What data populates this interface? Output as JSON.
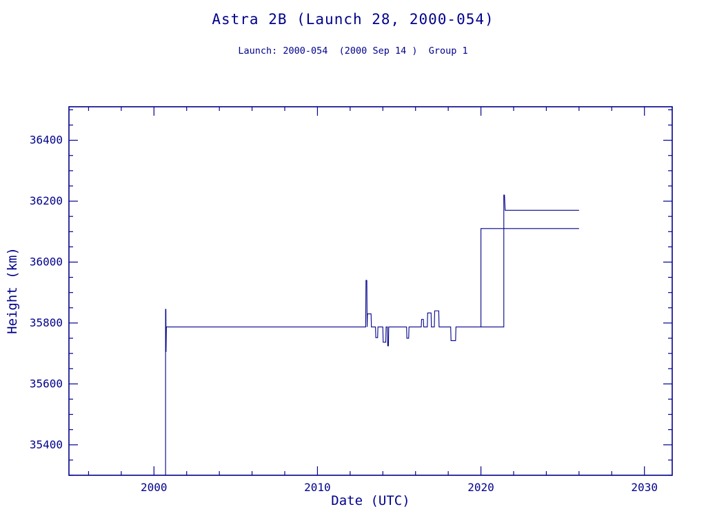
{
  "page": {
    "title": "Astra 2B (Launch 28, 2000-054)",
    "subtitle": "Launch: 2000-054  (2000 Sep 14 )  Group 1"
  },
  "chart_data": {
    "type": "line",
    "title": "Astra 2B (Launch 28, 2000-054)",
    "subtitle": "Launch: 2000-054  (2000 Sep 14 )  Group 1",
    "xlabel": "Date (UTC)",
    "ylabel": "Height (km)",
    "xlim": [
      1994.8,
      2031.7
    ],
    "ylim": [
      35300,
      36510
    ],
    "x_major_ticks": [
      2000,
      2010,
      2020,
      2030
    ],
    "x_minor_step": 2,
    "y_major_ticks": [
      35400,
      35600,
      35800,
      36000,
      36200,
      36400
    ],
    "y_minor_step": 50,
    "line_color": "#00008B",
    "axis_color": "#00008B",
    "legend": "none",
    "grid": false,
    "series": [
      {
        "name": "height-main",
        "points": [
          [
            2000.71,
            35300
          ],
          [
            2000.71,
            35845
          ],
          [
            2000.73,
            35845
          ],
          [
            2000.74,
            35705
          ],
          [
            2000.76,
            35787
          ],
          [
            2012.95,
            35787
          ],
          [
            2012.97,
            35940
          ],
          [
            2013.02,
            35940
          ],
          [
            2013.04,
            35787
          ],
          [
            2013.06,
            35830
          ],
          [
            2013.28,
            35830
          ],
          [
            2013.3,
            35787
          ],
          [
            2013.55,
            35787
          ],
          [
            2013.57,
            35752
          ],
          [
            2013.68,
            35752
          ],
          [
            2013.7,
            35787
          ],
          [
            2014.0,
            35787
          ],
          [
            2014.02,
            35737
          ],
          [
            2014.18,
            35737
          ],
          [
            2014.2,
            35787
          ],
          [
            2014.28,
            35787
          ],
          [
            2014.3,
            35725
          ],
          [
            2014.34,
            35725
          ],
          [
            2014.36,
            35787
          ],
          [
            2015.45,
            35787
          ],
          [
            2015.47,
            35750
          ],
          [
            2015.58,
            35750
          ],
          [
            2015.6,
            35787
          ],
          [
            2016.35,
            35787
          ],
          [
            2016.37,
            35812
          ],
          [
            2016.48,
            35812
          ],
          [
            2016.5,
            35787
          ],
          [
            2016.72,
            35787
          ],
          [
            2016.74,
            35833
          ],
          [
            2016.95,
            35833
          ],
          [
            2016.97,
            35787
          ],
          [
            2017.15,
            35787
          ],
          [
            2017.17,
            35840
          ],
          [
            2017.42,
            35840
          ],
          [
            2017.44,
            35787
          ],
          [
            2018.15,
            35787
          ],
          [
            2018.17,
            35742
          ],
          [
            2018.45,
            35742
          ],
          [
            2018.47,
            35787
          ],
          [
            2021.4,
            35787
          ],
          [
            2021.4,
            36220
          ],
          [
            2021.44,
            36220
          ],
          [
            2021.48,
            36170
          ],
          [
            2026.0,
            36170
          ]
        ]
      },
      {
        "name": "height-upper",
        "points": [
          [
            2020.0,
            35787
          ],
          [
            2020.0,
            36110
          ],
          [
            2026.0,
            36110
          ]
        ]
      }
    ]
  }
}
